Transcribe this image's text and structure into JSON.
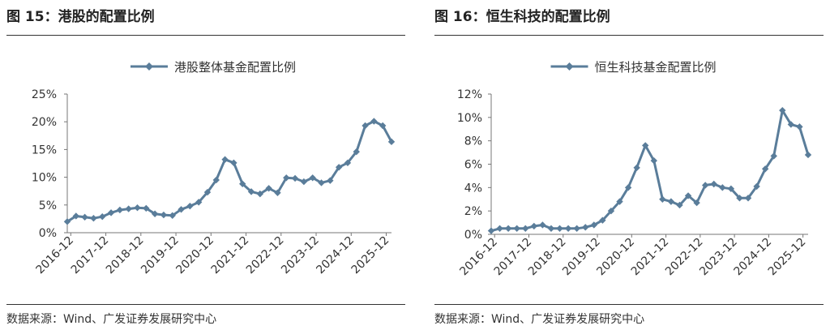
{
  "panels": [
    {
      "title": "图 15：港股的配置比例",
      "source": "数据来源：Wind、广发证券发展研究中心",
      "chart_data": {
        "type": "line",
        "series": [
          {
            "name": "港股整体基金配置比例",
            "color": "#5a7d9a",
            "values": [
              2.0,
              3.0,
              2.8,
              2.6,
              2.9,
              3.6,
              4.1,
              4.3,
              4.5,
              4.4,
              3.4,
              3.2,
              3.1,
              4.2,
              4.8,
              5.5,
              7.3,
              9.5,
              13.2,
              12.6,
              8.8,
              7.4,
              7.0,
              8.0,
              7.2,
              9.9,
              9.8,
              9.2,
              9.9,
              9.0,
              9.4,
              11.8,
              12.6,
              14.6,
              19.3,
              20.1,
              19.3,
              16.4
            ]
          }
        ],
        "xticks": [
          "2016-12",
          "2017-12",
          "2018-12",
          "2019-12",
          "2020-12",
          "2021-12",
          "2022-12",
          "2023-12",
          "2024-12",
          "2025-12"
        ],
        "yticks": [
          "0%",
          "5%",
          "10%",
          "15%",
          "20%",
          "25%"
        ],
        "ylim": [
          0,
          25
        ],
        "legend_position": "top"
      }
    },
    {
      "title": "图 16：恒生科技的配置比例",
      "source": "数据来源：Wind、广发证券发展研究中心",
      "chart_data": {
        "type": "line",
        "series": [
          {
            "name": "恒生科技基金配置比例",
            "color": "#5a7d9a",
            "values": [
              0.3,
              0.5,
              0.5,
              0.5,
              0.5,
              0.7,
              0.8,
              0.5,
              0.5,
              0.5,
              0.5,
              0.6,
              0.8,
              1.2,
              2.0,
              2.8,
              4.0,
              5.7,
              7.6,
              6.3,
              3.0,
              2.8,
              2.5,
              3.3,
              2.7,
              4.2,
              4.3,
              4.0,
              3.9,
              3.1,
              3.1,
              4.1,
              5.6,
              6.7,
              10.6,
              9.4,
              9.2,
              6.8
            ]
          }
        ],
        "xticks": [
          "2016-12",
          "2017-12",
          "2018-12",
          "2019-12",
          "2020-12",
          "2021-12",
          "2022-12",
          "2023-12",
          "2024-12",
          "2025-12"
        ],
        "yticks": [
          "0%",
          "2%",
          "4%",
          "6%",
          "8%",
          "10%",
          "12%"
        ],
        "ylim": [
          0,
          12
        ],
        "legend_position": "top"
      }
    }
  ]
}
